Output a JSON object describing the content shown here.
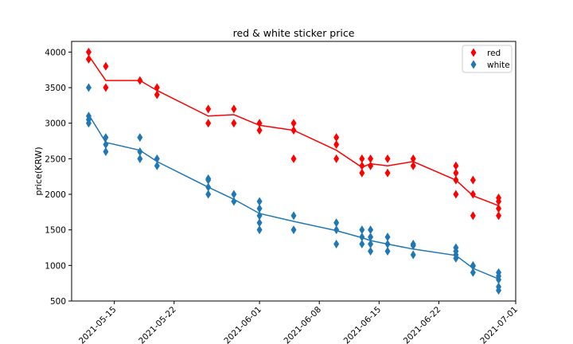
{
  "chart_data": {
    "type": "scatter",
    "title": "red & white sticker price",
    "xlabel": "",
    "ylabel": "price(KRW)",
    "x_type": "date",
    "xlim": [
      "2021-05-10",
      "2021-07-01"
    ],
    "ylim": [
      500,
      4150
    ],
    "x_ticks": [
      "2021-05-15",
      "2021-05-22",
      "2021-06-01",
      "2021-06-08",
      "2021-06-15",
      "2021-06-22",
      "2021-07-01"
    ],
    "y_ticks": [
      500,
      1000,
      1500,
      2000,
      2500,
      3000,
      3500,
      4000
    ],
    "grid": false,
    "legend_position": "top-right",
    "series": [
      {
        "name": "red",
        "color": "#ff0000",
        "marker": "diamond",
        "points": [
          [
            "2021-05-12",
            4000
          ],
          [
            "2021-05-12",
            3900
          ],
          [
            "2021-05-14",
            3800
          ],
          [
            "2021-05-14",
            3500
          ],
          [
            "2021-05-18",
            3600
          ],
          [
            "2021-05-20",
            3500
          ],
          [
            "2021-05-20",
            3400
          ],
          [
            "2021-05-26",
            3200
          ],
          [
            "2021-05-26",
            3000
          ],
          [
            "2021-05-29",
            3200
          ],
          [
            "2021-05-29",
            3000
          ],
          [
            "2021-06-01",
            3000
          ],
          [
            "2021-06-01",
            2900
          ],
          [
            "2021-06-05",
            3000
          ],
          [
            "2021-06-05",
            2900
          ],
          [
            "2021-06-05",
            2500
          ],
          [
            "2021-06-10",
            2800
          ],
          [
            "2021-06-10",
            2700
          ],
          [
            "2021-06-10",
            2500
          ],
          [
            "2021-06-13",
            2500
          ],
          [
            "2021-06-13",
            2400
          ],
          [
            "2021-06-13",
            2300
          ],
          [
            "2021-06-14",
            2500
          ],
          [
            "2021-06-14",
            2400
          ],
          [
            "2021-06-16",
            2500
          ],
          [
            "2021-06-16",
            2300
          ],
          [
            "2021-06-19",
            2500
          ],
          [
            "2021-06-19",
            2400
          ],
          [
            "2021-06-24",
            2400
          ],
          [
            "2021-06-24",
            2300
          ],
          [
            "2021-06-24",
            2200
          ],
          [
            "2021-06-24",
            2000
          ],
          [
            "2021-06-26",
            2200
          ],
          [
            "2021-06-26",
            2000
          ],
          [
            "2021-06-26",
            1700
          ],
          [
            "2021-06-29",
            1950
          ],
          [
            "2021-06-29",
            1900
          ],
          [
            "2021-06-29",
            1800
          ],
          [
            "2021-06-29",
            1700
          ]
        ],
        "line": [
          [
            "2021-05-12",
            3950
          ],
          [
            "2021-05-14",
            3600
          ],
          [
            "2021-05-18",
            3600
          ],
          [
            "2021-05-20",
            3460
          ],
          [
            "2021-05-26",
            3100
          ],
          [
            "2021-05-29",
            3120
          ],
          [
            "2021-06-01",
            2970
          ],
          [
            "2021-06-05",
            2900
          ],
          [
            "2021-06-10",
            2620
          ],
          [
            "2021-06-13",
            2380
          ],
          [
            "2021-06-14",
            2430
          ],
          [
            "2021-06-16",
            2400
          ],
          [
            "2021-06-19",
            2460
          ],
          [
            "2021-06-24",
            2200
          ],
          [
            "2021-06-26",
            1980
          ],
          [
            "2021-06-29",
            1840
          ]
        ]
      },
      {
        "name": "white",
        "color": "#1f77b4",
        "marker": "diamond",
        "points": [
          [
            "2021-05-12",
            3500
          ],
          [
            "2021-05-12",
            3100
          ],
          [
            "2021-05-12",
            3050
          ],
          [
            "2021-05-12",
            3000
          ],
          [
            "2021-05-14",
            2800
          ],
          [
            "2021-05-14",
            2700
          ],
          [
            "2021-05-14",
            2600
          ],
          [
            "2021-05-18",
            2800
          ],
          [
            "2021-05-18",
            2600
          ],
          [
            "2021-05-18",
            2500
          ],
          [
            "2021-05-20",
            2500
          ],
          [
            "2021-05-20",
            2400
          ],
          [
            "2021-05-26",
            2220
          ],
          [
            "2021-05-26",
            2200
          ],
          [
            "2021-05-26",
            2100
          ],
          [
            "2021-05-26",
            2000
          ],
          [
            "2021-05-29",
            2000
          ],
          [
            "2021-05-29",
            1900
          ],
          [
            "2021-06-01",
            1900
          ],
          [
            "2021-06-01",
            1800
          ],
          [
            "2021-06-01",
            1700
          ],
          [
            "2021-06-01",
            1600
          ],
          [
            "2021-06-01",
            1500
          ],
          [
            "2021-06-05",
            1700
          ],
          [
            "2021-06-05",
            1500
          ],
          [
            "2021-06-10",
            1600
          ],
          [
            "2021-06-10",
            1500
          ],
          [
            "2021-06-10",
            1300
          ],
          [
            "2021-06-13",
            1500
          ],
          [
            "2021-06-13",
            1400
          ],
          [
            "2021-06-13",
            1300
          ],
          [
            "2021-06-14",
            1500
          ],
          [
            "2021-06-14",
            1400
          ],
          [
            "2021-06-14",
            1300
          ],
          [
            "2021-06-14",
            1200
          ],
          [
            "2021-06-16",
            1400
          ],
          [
            "2021-06-16",
            1300
          ],
          [
            "2021-06-16",
            1200
          ],
          [
            "2021-06-19",
            1300
          ],
          [
            "2021-06-19",
            1280
          ],
          [
            "2021-06-19",
            1150
          ],
          [
            "2021-06-24",
            1250
          ],
          [
            "2021-06-24",
            1200
          ],
          [
            "2021-06-24",
            1150
          ],
          [
            "2021-06-24",
            1100
          ],
          [
            "2021-06-26",
            1000
          ],
          [
            "2021-06-26",
            990
          ],
          [
            "2021-06-26",
            900
          ],
          [
            "2021-06-29",
            900
          ],
          [
            "2021-06-29",
            850
          ],
          [
            "2021-06-29",
            800
          ],
          [
            "2021-06-29",
            700
          ],
          [
            "2021-06-29",
            650
          ]
        ],
        "line": [
          [
            "2021-05-12",
            3120
          ],
          [
            "2021-05-14",
            2730
          ],
          [
            "2021-05-18",
            2620
          ],
          [
            "2021-05-20",
            2460
          ],
          [
            "2021-05-26",
            2100
          ],
          [
            "2021-05-29",
            1930
          ],
          [
            "2021-06-01",
            1730
          ],
          [
            "2021-06-05",
            1620
          ],
          [
            "2021-06-10",
            1490
          ],
          [
            "2021-06-13",
            1390
          ],
          [
            "2021-06-14",
            1350
          ],
          [
            "2021-06-16",
            1300
          ],
          [
            "2021-06-19",
            1230
          ],
          [
            "2021-06-24",
            1140
          ],
          [
            "2021-06-26",
            960
          ],
          [
            "2021-06-29",
            810
          ]
        ]
      }
    ]
  }
}
